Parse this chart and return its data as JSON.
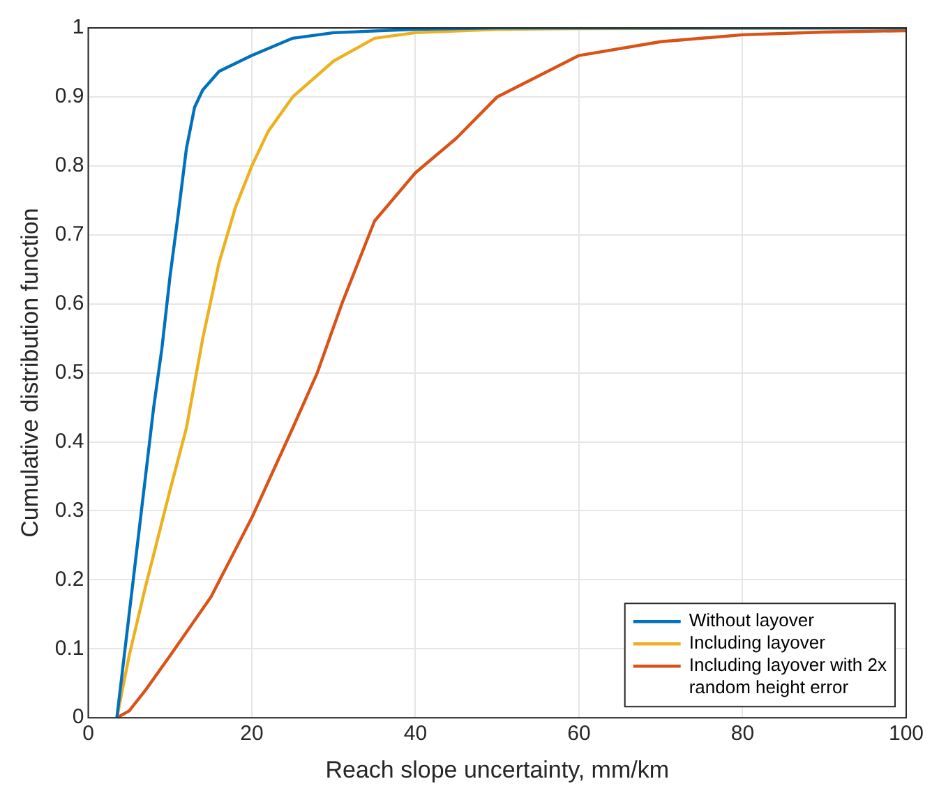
{
  "chart_data": {
    "type": "line",
    "xlabel": "Reach slope uncertainty, mm/km",
    "ylabel": "Cumulative distribution function",
    "xlim": [
      0,
      100
    ],
    "xticks": [
      0,
      20,
      40,
      60,
      80,
      100
    ],
    "ylim": [
      0,
      1
    ],
    "yticks": [
      0,
      0.1,
      0.2,
      0.3,
      0.4,
      0.5,
      0.6,
      0.7,
      0.8,
      0.9,
      1
    ],
    "grid": true,
    "legend": "bottom right",
    "marker": "none",
    "line_style": "solid",
    "series": [
      {
        "name": "Without layover",
        "color": "#0072bd",
        "x": [
          3.5,
          5,
          6,
          7,
          8,
          9,
          10,
          11,
          12,
          13,
          14,
          16,
          20,
          25,
          30,
          40,
          50,
          100
        ],
        "values": [
          0,
          0.15,
          0.25,
          0.35,
          0.45,
          0.535,
          0.64,
          0.73,
          0.825,
          0.885,
          0.91,
          0.937,
          0.96,
          0.985,
          0.993,
          0.998,
          1,
          1
        ]
      },
      {
        "name": "Including layover",
        "color": "#edb120",
        "x": [
          3.5,
          5,
          7,
          10,
          12,
          14,
          16,
          18,
          20,
          22,
          25,
          30,
          35,
          40,
          50,
          60,
          100
        ],
        "values": [
          0,
          0.09,
          0.19,
          0.33,
          0.42,
          0.55,
          0.66,
          0.74,
          0.8,
          0.85,
          0.9,
          0.952,
          0.985,
          0.993,
          0.998,
          0.999,
          1
        ]
      },
      {
        "name": "Including layover with 2x random height error",
        "color": "#d95319",
        "x": [
          3.5,
          5,
          7,
          10,
          15,
          20,
          25,
          28,
          31,
          35,
          40,
          45,
          50,
          60,
          70,
          80,
          90,
          100
        ],
        "values": [
          0,
          0.01,
          0.04,
          0.09,
          0.175,
          0.29,
          0.42,
          0.5,
          0.6,
          0.72,
          0.79,
          0.84,
          0.9,
          0.96,
          0.98,
          0.99,
          0.994,
          0.996
        ]
      }
    ]
  }
}
